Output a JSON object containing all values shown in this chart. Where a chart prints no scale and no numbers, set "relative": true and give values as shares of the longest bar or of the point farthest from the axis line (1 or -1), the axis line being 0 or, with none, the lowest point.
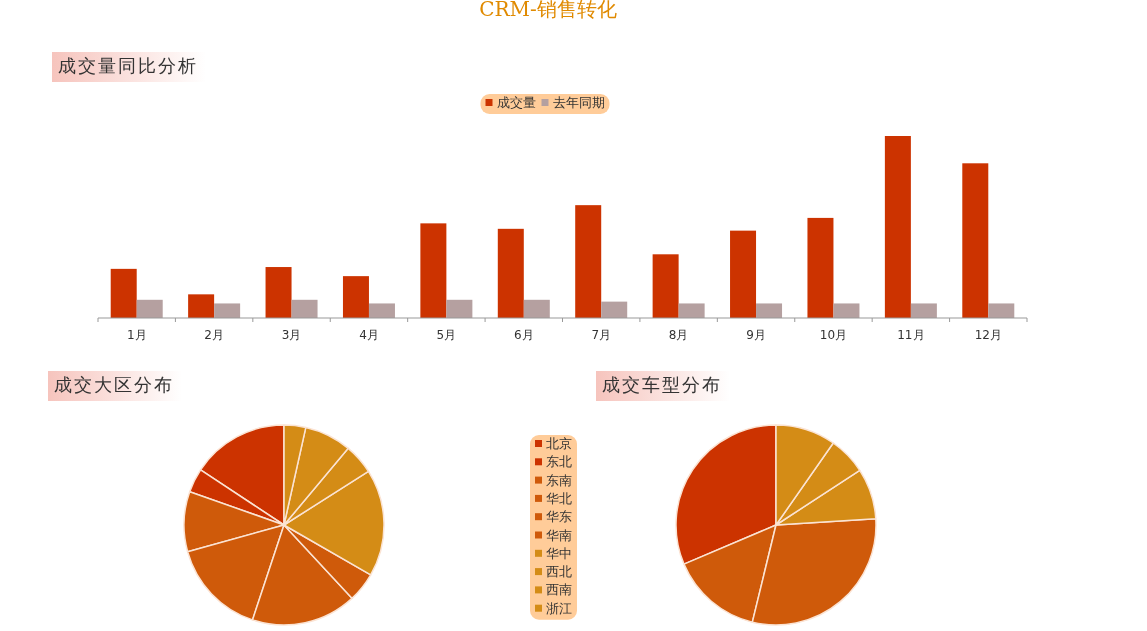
{
  "chart_data": [
    {
      "type": "other",
      "title": "CRM-销售转化"
    },
    {
      "type": "bar",
      "title": "成交量同比分析",
      "relative": true,
      "legend": "top",
      "categories": [
        "1月",
        "2月",
        "3月",
        "4月",
        "5月",
        "6月",
        "7月",
        "8月",
        "9月",
        "10月",
        "11月",
        "12月"
      ],
      "series": [
        {
          "name": "成交量",
          "color": "#cc3300",
          "values": [
            0.27,
            0.13,
            0.28,
            0.23,
            0.52,
            0.49,
            0.62,
            0.35,
            0.48,
            0.55,
            1,
            0.85
          ]
        },
        {
          "name": "去年同期",
          "color": "#b5a0a0",
          "values": [
            0.1,
            0.08,
            0.1,
            0.08,
            0.1,
            0.1,
            0.09,
            0.08,
            0.08,
            0.08,
            0.08,
            0.08
          ]
        }
      ]
    },
    {
      "type": "pie",
      "title": "成交大区分布",
      "legend": "right",
      "categories": [
        "北京",
        "东北",
        "东南",
        "华北",
        "华东",
        "华南",
        "华中",
        "西北",
        "西南",
        "浙江"
      ],
      "values": [
        15.7,
        3.9,
        9.7,
        15.6,
        17.0,
        4.8,
        17.3,
        4.9,
        7.6,
        3.5
      ],
      "colors": [
        "#cc3300",
        "#cc3300",
        "#cf5a0a",
        "#cf5a0a",
        "#cf5a0a",
        "#cf5a0a",
        "#d48c16",
        "#d48c16",
        "#d48c16",
        "#d48c16"
      ]
    },
    {
      "type": "pie",
      "title": "成交车型分布",
      "categories": [
        null,
        null,
        null,
        null,
        null,
        null
      ],
      "values": [
        31.4,
        14.8,
        29.8,
        8.2,
        6.1,
        9.7
      ],
      "colors": [
        "#cc3300",
        "#cf5a0a",
        "#cf5a0a",
        "#d48c16",
        "#d48c16",
        "#d48c16"
      ]
    }
  ]
}
